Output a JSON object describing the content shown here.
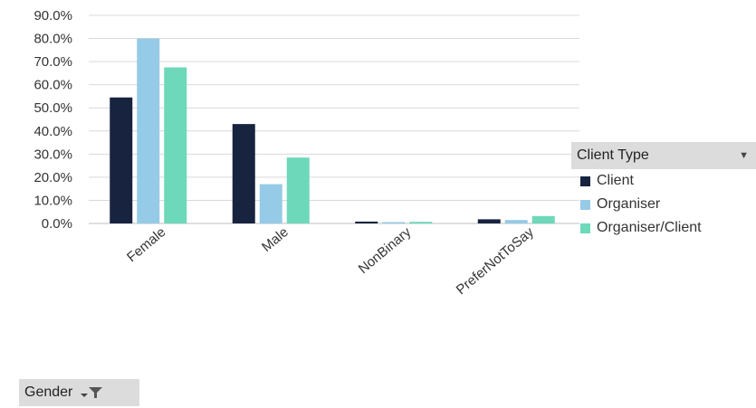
{
  "chart_data": {
    "type": "bar",
    "categories": [
      "Female",
      "Male",
      "NonBinary",
      "PreferNotToSay"
    ],
    "series": [
      {
        "name": "Client",
        "color": "#17233f",
        "values": [
          54.5,
          43.0,
          0.8,
          1.8
        ]
      },
      {
        "name": "Organiser",
        "color": "#95cbe6",
        "values": [
          80.0,
          17.0,
          0.6,
          1.5
        ]
      },
      {
        "name": "Organiser/Client",
        "color": "#6dd8ba",
        "values": [
          67.5,
          28.5,
          0.7,
          3.2
        ]
      }
    ],
    "ylim": [
      0,
      90
    ],
    "ytick_labels": [
      "0.0%",
      "10.0%",
      "20.0%",
      "30.0%",
      "40.0%",
      "50.0%",
      "60.0%",
      "70.0%",
      "80.0%",
      "90.0%"
    ],
    "grid": true,
    "legend_position": "right"
  },
  "legend": {
    "title": "Client Type"
  },
  "field_button": {
    "label": "Gender"
  }
}
